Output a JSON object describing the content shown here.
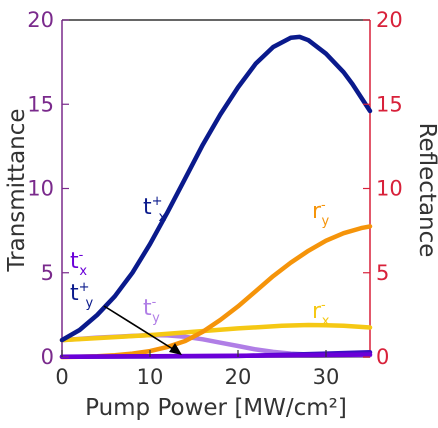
{
  "chart_data": {
    "type": "line",
    "xlabel": "Pump Power [MW/cm²]",
    "ylabel_left": "Transmittance",
    "ylabel_right": "Reflectance",
    "xlim": [
      0,
      35
    ],
    "ylim": [
      0,
      20
    ],
    "x_ticks": [
      "0",
      "10",
      "20",
      "30"
    ],
    "y_ticks_left": [
      "0",
      "5",
      "10",
      "15",
      "20"
    ],
    "y_ticks_right": [
      "0",
      "5",
      "10",
      "15",
      "20"
    ],
    "grid": false,
    "colors": {
      "left_axis": "#7a2a8c",
      "right_axis": "#d8213a"
    },
    "series": [
      {
        "label_base": "t",
        "label_sup": "+",
        "label_sub": "x",
        "color": "#0a1a8c",
        "x": [
          0,
          2,
          4,
          6,
          8,
          10,
          12,
          14,
          16,
          18,
          20,
          22,
          24,
          26,
          27,
          28,
          30,
          32,
          33,
          34,
          35
        ],
        "y": [
          1.0,
          1.6,
          2.5,
          3.6,
          5.0,
          6.7,
          8.6,
          10.6,
          12.6,
          14.4,
          16.0,
          17.4,
          18.4,
          18.95,
          19.0,
          18.8,
          18.0,
          16.9,
          16.2,
          15.4,
          14.6
        ]
      },
      {
        "label_base": "r",
        "label_sup": "-",
        "label_sub": "y",
        "color": "#f5940a",
        "x": [
          0,
          2,
          4,
          6,
          8,
          10,
          12,
          14,
          16,
          18,
          20,
          22,
          24,
          26,
          28,
          30,
          32,
          34,
          35
        ],
        "y": [
          0.0,
          0.02,
          0.05,
          0.1,
          0.2,
          0.35,
          0.6,
          0.95,
          1.5,
          2.2,
          3.0,
          3.9,
          4.8,
          5.6,
          6.3,
          6.9,
          7.35,
          7.65,
          7.75
        ]
      },
      {
        "label_base": "r",
        "label_sup": "-",
        "label_sub": "x",
        "color": "#f5c814",
        "x": [
          0,
          5,
          10,
          15,
          20,
          25,
          28,
          30,
          32,
          35
        ],
        "y": [
          1.0,
          1.15,
          1.3,
          1.5,
          1.7,
          1.85,
          1.9,
          1.88,
          1.85,
          1.75
        ]
      },
      {
        "label_base": "t",
        "label_sup": "-",
        "label_sub": "y",
        "color": "#b07ee6",
        "x": [
          0,
          4,
          8,
          10,
          12,
          14,
          16,
          18,
          20,
          22,
          24,
          26,
          28,
          30,
          35
        ],
        "y": [
          1.0,
          1.15,
          1.25,
          1.3,
          1.28,
          1.2,
          1.05,
          0.85,
          0.65,
          0.45,
          0.3,
          0.2,
          0.15,
          0.12,
          0.1
        ]
      },
      {
        "label_base": "t",
        "label_sup": "-",
        "label_sub": "x",
        "color": "#6a00d8",
        "x": [
          0,
          10,
          20,
          30,
          35
        ],
        "y": [
          0.02,
          0.05,
          0.08,
          0.12,
          0.15
        ]
      },
      {
        "label_base": "t",
        "label_sup": "+",
        "label_sub": "y",
        "color": "#3a10c0",
        "x": [
          0,
          10,
          20,
          30,
          35
        ],
        "y": [
          0.02,
          0.03,
          0.06,
          0.2,
          0.28
        ]
      }
    ],
    "annotations": [
      {
        "text_base": "t",
        "text_sup": "+",
        "text_sub": "x",
        "color": "#0a1a8c"
      },
      {
        "text_base": "r",
        "text_sup": "-",
        "text_sub": "y",
        "color": "#f5940a"
      },
      {
        "text_base": "t",
        "text_sup": "-",
        "text_sub": "x",
        "color": "#6a00d8"
      },
      {
        "text_base": "t",
        "text_sup": "+",
        "text_sub": "y",
        "color": "#0a1a8c"
      },
      {
        "text_base": "t",
        "text_sup": "-",
        "text_sub": "y",
        "color": "#b07ee6"
      },
      {
        "text_base": "r",
        "text_sup": "-",
        "text_sub": "x",
        "color": "#f5c814"
      }
    ]
  }
}
